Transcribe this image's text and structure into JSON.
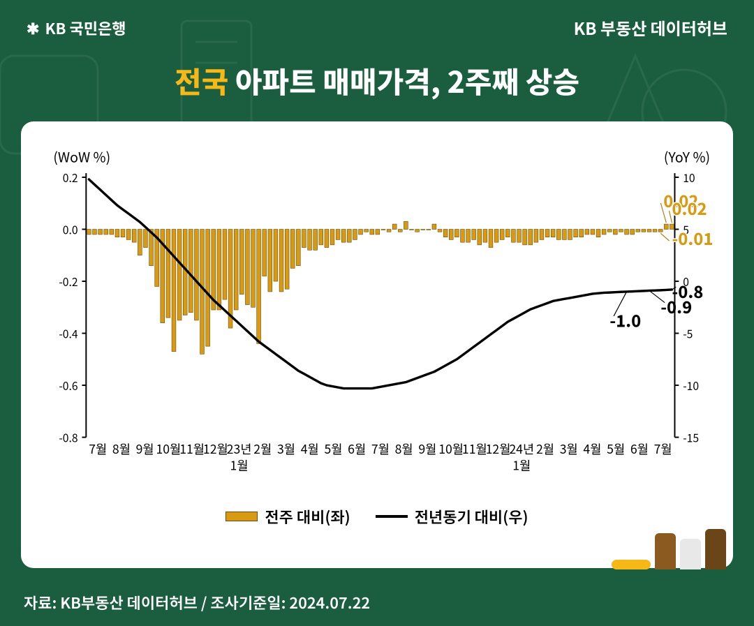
{
  "header": {
    "logo_left_icon": "✱",
    "logo_left_text": "KB 국민은행",
    "logo_right": "KB 부동산 데이터허브"
  },
  "title": {
    "accent": "전국",
    "rest": " 아파트 매매가격, 2주째 상승"
  },
  "chart": {
    "type": "bar+line",
    "background_color": "#ffffff",
    "card_radius": 18,
    "left_axis": {
      "title": "(WoW %)",
      "min": -0.8,
      "max": 0.2,
      "ticks": [
        0.2,
        0.0,
        -0.2,
        -0.4,
        -0.6,
        -0.8
      ],
      "title_fontsize": 20
    },
    "right_axis": {
      "title": "(YoY %)",
      "min": -15,
      "max": 10,
      "ticks": [
        10,
        5,
        0,
        -5,
        -10,
        -15
      ],
      "title_fontsize": 20
    },
    "x_labels_row1": [
      "7월",
      "8월",
      "9월",
      "10월",
      "11월",
      "12월",
      "23년",
      "2월",
      "3월",
      "4월",
      "5월",
      "6월",
      "7월",
      "8월",
      "9월",
      "10월",
      "11월",
      "12월",
      "24년",
      "2월",
      "3월",
      "4월",
      "5월",
      "6월",
      "7월"
    ],
    "x_labels_row2_positions": {
      "6": "1월",
      "18": "1월"
    },
    "bars": {
      "color": "#d89a12",
      "border_color": "#6b4a0a",
      "values": [
        -0.02,
        -0.02,
        -0.02,
        -0.02,
        -0.02,
        -0.03,
        -0.03,
        -0.04,
        -0.05,
        -0.1,
        -0.07,
        -0.14,
        -0.22,
        -0.36,
        -0.34,
        -0.47,
        -0.35,
        -0.33,
        -0.32,
        -0.35,
        -0.48,
        -0.45,
        -0.31,
        -0.31,
        -0.27,
        -0.38,
        -0.31,
        -0.25,
        -0.29,
        -0.3,
        -0.44,
        -0.18,
        -0.24,
        -0.2,
        -0.24,
        -0.23,
        -0.15,
        -0.14,
        -0.07,
        -0.08,
        -0.08,
        -0.06,
        -0.07,
        -0.06,
        -0.04,
        -0.05,
        -0.05,
        -0.04,
        -0.02,
        -0.01,
        -0.02,
        -0.02,
        0.0,
        -0.01,
        0.02,
        -0.01,
        0.03,
        0.0,
        -0.01,
        0.0,
        0.0,
        0.02,
        -0.01,
        -0.03,
        -0.04,
        -0.03,
        -0.05,
        -0.05,
        -0.04,
        -0.06,
        -0.05,
        -0.07,
        -0.05,
        -0.04,
        -0.03,
        -0.05,
        -0.05,
        -0.06,
        -0.06,
        -0.05,
        -0.04,
        -0.03,
        -0.03,
        -0.04,
        -0.04,
        -0.04,
        -0.03,
        -0.03,
        -0.02,
        -0.02,
        -0.03,
        -0.02,
        -0.01,
        -0.02,
        -0.01,
        -0.02,
        -0.02,
        -0.01,
        -0.01,
        -0.01,
        -0.01,
        -0.01,
        0.02,
        0.02
      ]
    },
    "line": {
      "color": "#000000",
      "width": 3.5,
      "values": [
        9.8,
        9.3,
        8.8,
        8.3,
        7.8,
        7.3,
        6.9,
        6.5,
        6.1,
        5.7,
        5.2,
        4.7,
        4.2,
        3.6,
        3.0,
        2.4,
        1.8,
        1.2,
        0.6,
        0.0,
        -0.6,
        -1.2,
        -1.8,
        -2.3,
        -2.8,
        -3.3,
        -3.8,
        -4.3,
        -4.8,
        -5.3,
        -5.8,
        -6.2,
        -6.6,
        -7.0,
        -7.4,
        -7.8,
        -8.2,
        -8.6,
        -8.9,
        -9.2,
        -9.5,
        -9.8,
        -10.0,
        -10.1,
        -10.2,
        -10.3,
        -10.3,
        -10.3,
        -10.3,
        -10.3,
        -10.3,
        -10.2,
        -10.1,
        -10.0,
        -9.9,
        -9.8,
        -9.7,
        -9.5,
        -9.3,
        -9.1,
        -8.9,
        -8.7,
        -8.4,
        -8.1,
        -7.8,
        -7.5,
        -7.1,
        -6.7,
        -6.3,
        -5.9,
        -5.5,
        -5.1,
        -4.7,
        -4.3,
        -3.9,
        -3.6,
        -3.3,
        -3.0,
        -2.7,
        -2.5,
        -2.3,
        -2.1,
        -1.9,
        -1.8,
        -1.7,
        -1.6,
        -1.5,
        -1.4,
        -1.3,
        -1.2,
        -1.15,
        -1.1,
        -1.08,
        -1.05,
        -1.02,
        -1.0,
        -0.98,
        -0.95,
        -0.93,
        -0.9,
        -0.88,
        -0.86,
        -0.83,
        -0.8
      ]
    },
    "annotations_bars": [
      {
        "text": "0.02",
        "x_index_approx": 101.5,
        "y_value": 0.085,
        "leader_to_index": 102
      },
      {
        "text": "-0.01",
        "x_index_approx": 103.5,
        "y_value": -0.06,
        "leader_to_index": 101
      },
      {
        "text": "0.02",
        "x_index_approx": 107,
        "y_value": 0.055,
        "leader_to_index": 103
      }
    ],
    "annotations_line": [
      {
        "text": "-1.0",
        "x_index_approx": 92,
        "y_value": -4.4,
        "leader_to_index": 95
      },
      {
        "text": "-0.9",
        "x_index_approx": 101,
        "y_value": -3.1,
        "leader_to_index": 99
      },
      {
        "text": "-0.8",
        "x_index_approx": 108,
        "y_value": -1.6,
        "leader_to_index": 103
      }
    ],
    "legend": {
      "bar_label": "전주 대비(좌)",
      "line_label": "전년동기 대비(우)"
    }
  },
  "source": "자료: KB부동산 데이터허브 / 조사기준일: 2024.07.22",
  "colors": {
    "page_bg": "#1b5e3f",
    "accent_yellow": "#f5b817",
    "bar_fill": "#d89a12",
    "bar_stroke": "#6b4a0a",
    "line": "#000000",
    "white": "#ffffff",
    "deco_brown1": "#8a5a20",
    "deco_brown2": "#6a4518"
  }
}
